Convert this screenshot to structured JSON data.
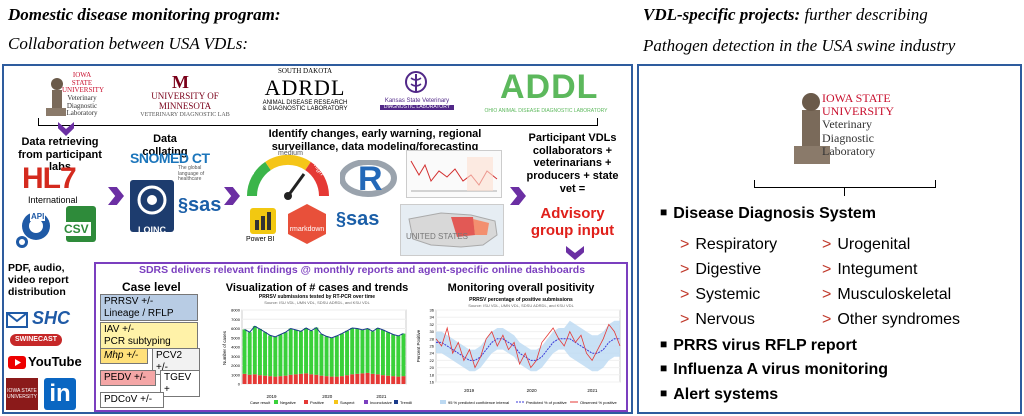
{
  "left_header": {
    "title": "Domestic disease monitoring program:",
    "subtitle": "Collaboration between USA VDLs:"
  },
  "right_header": {
    "title": "VDL-specific projects:",
    "title_suffix": "further describing",
    "subtitle": "Pathogen detection in the USA swine industry"
  },
  "logos": {
    "isu": [
      "IOWA STATE",
      "UNIVERSITY",
      "Veterinary",
      "Diagnostic",
      "Laboratory"
    ],
    "umn": [
      "UNIVERSITY OF MINNESOTA",
      "VETERINARY DIAGNOSTIC LAB"
    ],
    "sd": [
      "SOUTH DAKOTA",
      "ADRDL",
      "ANIMAL DISEASE RESEARCH",
      "& DIAGNOSTIC LABORATORY"
    ],
    "ks": [
      "Kansas State Veterinary",
      "DIAGNOSTIC LABORATORY"
    ],
    "addl": [
      "ADDL",
      "OHIO ANIMAL DISEASE DIAGNOSTIC LABORATORY"
    ]
  },
  "steps": {
    "retrieving": "Data retrieving from participant labs",
    "collating": "Data collating",
    "identify": "Identify changes, early warning, regional surveillance, data modeling/forecasting",
    "participants": "Participant VDLs collaborators + veterinarians + producers + state vet =",
    "advisory": "Advisory group input"
  },
  "tech": {
    "hl7": "HL7",
    "hl7_sub": "International",
    "api": "API",
    "csv": "CSV",
    "snomed": "SNOMED CT",
    "snomed_sub": [
      "The global",
      "language of",
      "healthcare"
    ],
    "loinc": "LOINC",
    "sas": "sas",
    "gauge_labels": [
      "low",
      "medium",
      "high"
    ],
    "powerbi": "Power BI",
    "rmarkdown": "rmarkdown",
    "r": "R",
    "sas2": "sas",
    "map_label": "UNITED STATES"
  },
  "sdrs": {
    "banner": "SDRS delivers relevant findings @ monthly reports and agent-specific online dashboards",
    "distribution": "PDF, audio, video report distribution",
    "case_level": "Case level",
    "cases": [
      {
        "line1": "PRRSV +/-",
        "line2": "Lineage / RFLP",
        "color": "#b8cce4"
      },
      {
        "line1": "IAV  +/-",
        "line2": "PCR subtyping",
        "color": "#fff2a8"
      },
      {
        "line1": "Mhp +/-",
        "line2": "",
        "color": "#ffe07a"
      },
      {
        "line1": "PCV2 +/-",
        "line2": "",
        "color": "#f2f2f2"
      },
      {
        "line1": "PEDV +/-",
        "line2": "",
        "color": "#f4a6a6"
      },
      {
        "line1": "TGEV +",
        "line2": "",
        "color": "#ffffff"
      },
      {
        "line1": "PDCoV +/-",
        "line2": "",
        "color": "#ffffff"
      }
    ],
    "vis_title": "Visualization of # cases and trends",
    "chart1_title": "PRRSV submissions tested by RT-PCR over time",
    "chart1_sub": "Source: ISU VDL, UMN VDL, SDSU ADRDL, and KSU VDL",
    "chart1_legend": [
      "Case result",
      "Negative",
      "Positive",
      "Suspect",
      "Inconclusive",
      "Trendline"
    ],
    "chart1_ylabel": "Number of cases",
    "chart1_yticks": [
      "8000",
      "7000",
      "6000",
      "5000",
      "4000",
      "3000",
      "2000",
      "1000",
      "0"
    ],
    "chart1_years": [
      "2019",
      "2020",
      "2021"
    ],
    "mon_title": "Monitoring overall positivity",
    "chart2_title": "PRRSV percentage of positive submissions",
    "chart2_sub": "Source: ISU VDL, UMN VDL, SDSU ADRDL, and KSU VDL",
    "chart2_ylabel": "Percent Positive",
    "chart2_yticks": [
      "36",
      "34",
      "32",
      "30",
      "28",
      "26",
      "24",
      "22",
      "20",
      "18",
      "16"
    ],
    "chart2_years": [
      "2019",
      "2020",
      "2021"
    ],
    "chart2_legend": [
      "95 % predicted confidence interval",
      "Predicted % of positive",
      "Observed % positive"
    ],
    "dist": {
      "shc": "SHC",
      "swinecast": "SWINECAST",
      "youtube": "YouTube",
      "isu_short": "IOWA STATE UNIVERSITY",
      "linkedin": "in"
    }
  },
  "right_panel": {
    "isu_logo": [
      "IOWA STATE",
      "UNIVERSITY",
      "Veterinary",
      "Diagnostic",
      "Laboratory"
    ],
    "dds": "Disease Diagnosis System",
    "systems_left": [
      "Respiratory",
      "Digestive",
      "Systemic",
      "Nervous"
    ],
    "systems_right": [
      "Urogenital",
      "Integument",
      "Musculoskeletal",
      "Other syndromes"
    ],
    "bullets": [
      "PRRS virus RFLP report",
      "Influenza A virus monitoring",
      "Alert systems"
    ]
  },
  "colors": {
    "frame": "#2e5c9e",
    "purple": "#6b2fa3",
    "red": "#e0201b",
    "isu_red": "#c8102e",
    "umn_maroon": "#7a0019",
    "addl_green": "#5cb85c",
    "banner_purple": "#7b3fbf"
  },
  "chart_data": [
    {
      "type": "bar",
      "title": "PRRSV submissions tested by RT-PCR over time",
      "ylabel": "Number of cases",
      "ylim": [
        0,
        8000
      ],
      "categories": [
        "2019-01",
        "2019-02",
        "2019-03",
        "2019-04",
        "2019-05",
        "2019-06",
        "2019-07",
        "2019-08",
        "2019-09",
        "2019-10",
        "2019-11",
        "2019-12",
        "2020-01",
        "2020-02",
        "2020-03",
        "2020-04",
        "2020-05",
        "2020-06",
        "2020-07",
        "2020-08",
        "2020-09",
        "2020-10",
        "2020-11",
        "2020-12",
        "2021-01",
        "2021-02",
        "2021-03",
        "2021-04",
        "2021-05",
        "2021-06",
        "2021-07",
        "2021-08"
      ],
      "series": [
        {
          "name": "Negative",
          "values": [
            4800,
            4600,
            5200,
            5000,
            4700,
            4400,
            4300,
            4500,
            4700,
            5000,
            4800,
            4600,
            4900,
            4700,
            5100,
            4500,
            4300,
            4200,
            4400,
            4600,
            4800,
            5000,
            4900,
            4700,
            4800,
            4600,
            5000,
            4900,
            4700,
            4500,
            4400,
            4600
          ]
        },
        {
          "name": "Positive",
          "values": [
            1100,
            1000,
            1050,
            950,
            900,
            850,
            800,
            850,
            900,
            1000,
            1050,
            1100,
            1150,
            1050,
            1000,
            900,
            850,
            800,
            800,
            850,
            950,
            1050,
            1100,
            1150,
            1200,
            1100,
            1050,
            950,
            900,
            850,
            800,
            850
          ]
        }
      ],
      "years": [
        "2019",
        "2020",
        "2021"
      ]
    },
    {
      "type": "line",
      "title": "PRRSV percentage of positive submissions",
      "ylabel": "Percent Positive",
      "ylim": [
        16,
        36
      ],
      "series": [
        {
          "name": "Observed % positive",
          "values": [
            28,
            26,
            31,
            24,
            27,
            22,
            25,
            20,
            23,
            28,
            30,
            26,
            29,
            25,
            27,
            21,
            24,
            20,
            22,
            27,
            29,
            31,
            28,
            26,
            30,
            27,
            29,
            24,
            22,
            25,
            28,
            32,
            30,
            26
          ]
        },
        {
          "name": "Predicted % of positive",
          "values": [
            27,
            27,
            26,
            25,
            24,
            23,
            22,
            22,
            23,
            25,
            27,
            28,
            28,
            27,
            26,
            24,
            23,
            22,
            22,
            23,
            25,
            27,
            28,
            28,
            28,
            27,
            26,
            25,
            24,
            24,
            25,
            27,
            28,
            28
          ]
        }
      ],
      "years": [
        "2019",
        "2020",
        "2021"
      ]
    }
  ]
}
